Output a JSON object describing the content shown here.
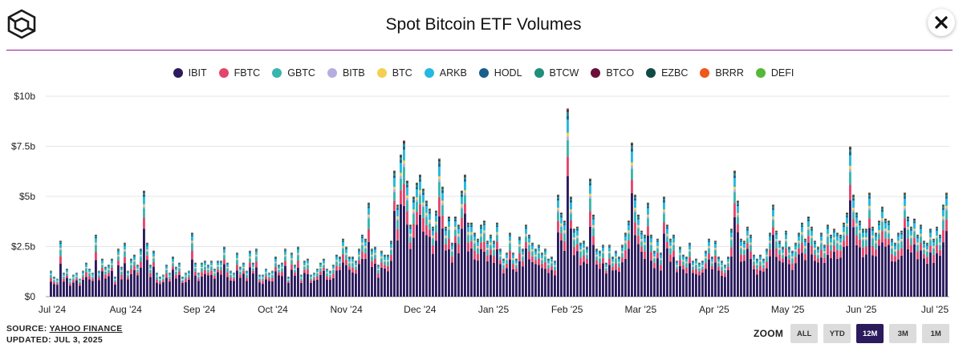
{
  "header": {
    "title": "Spot Bitcoin ETF Volumes"
  },
  "legend": [
    {
      "name": "IBIT",
      "color": "#2b1b5c"
    },
    {
      "name": "FBTC",
      "color": "#e2466d"
    },
    {
      "name": "GBTC",
      "color": "#3ab5ae"
    },
    {
      "name": "BITB",
      "color": "#b4aee0"
    },
    {
      "name": "BTC",
      "color": "#f4d052"
    },
    {
      "name": "ARKB",
      "color": "#25b8e0"
    },
    {
      "name": "HODL",
      "color": "#1a5f8c"
    },
    {
      "name": "BTCW",
      "color": "#1f8f7c"
    },
    {
      "name": "BTCO",
      "color": "#6b0f3a"
    },
    {
      "name": "EZBC",
      "color": "#0f4a44"
    },
    {
      "name": "BRRR",
      "color": "#ee5a1c"
    },
    {
      "name": "DEFI",
      "color": "#55b837"
    }
  ],
  "chart_data": {
    "type": "bar",
    "stacked": true,
    "title": "Spot Bitcoin ETF Volumes",
    "ylim": [
      0,
      10
    ],
    "y_ticks": [
      "$0",
      "$2.5b",
      "$5b",
      "$7.5b",
      "$10b"
    ],
    "x_tick_labels": [
      "Jul '24",
      "Aug '24",
      "Sep '24",
      "Oct '24",
      "Nov '24",
      "Dec '24",
      "Jan '25",
      "Feb '25",
      "Mar '25",
      "Apr '25",
      "May '25",
      "Jun '25",
      "Jul '25"
    ],
    "unit": "USD billions",
    "daily_totals": [
      1.3,
      1.0,
      0.9,
      2.8,
      1.2,
      1.4,
      0.9,
      1.1,
      1.2,
      0.9,
      1.3,
      1.7,
      1.4,
      1.2,
      3.1,
      1.3,
      1.9,
      1.5,
      1.6,
      1.9,
      1.0,
      2.4,
      1.5,
      2.7,
      1.3,
      1.9,
      2.1,
      1.6,
      2.4,
      5.3,
      2.7,
      1.6,
      2.3,
      1.2,
      1.0,
      1.1,
      1.6,
      1.2,
      2.0,
      1.5,
      1.7,
      1.0,
      1.2,
      1.3,
      3.2,
      1.7,
      1.2,
      1.7,
      1.8,
      1.6,
      1.8,
      1.4,
      1.8,
      1.8,
      2.5,
      1.7,
      1.3,
      1.2,
      2.2,
      1.5,
      1.7,
      1.3,
      2.3,
      1.7,
      2.4,
      1.1,
      1.1,
      1.4,
      1.2,
      1.3,
      2.0,
      1.6,
      1.7,
      2.4,
      1.0,
      2.2,
      1.6,
      2.5,
      1.1,
      1.8,
      1.9,
      1.1,
      1.2,
      1.4,
      1.7,
      1.9,
      1.4,
      1.3,
      1.6,
      2.1,
      2.0,
      2.9,
      2.5,
      2.0,
      2.0,
      1.8,
      2.4,
      3.1,
      2.9,
      4.7,
      2.4,
      2.5,
      1.6,
      2.3,
      2.1,
      2.1,
      2.8,
      6.3,
      4.6,
      7.1,
      7.8,
      5.8,
      3.6,
      5.0,
      5.7,
      6.1,
      5.4,
      4.8,
      4.4,
      3.5,
      4.3,
      6.9,
      5.5,
      3.5,
      4.0,
      2.7,
      4.0,
      3.6,
      5.3,
      6.1,
      3.7,
      3.7,
      3.2,
      2.9,
      3.6,
      3.8,
      2.8,
      3.1,
      2.8,
      3.7,
      2.4,
      1.9,
      2.2,
      3.2,
      2.2,
      1.9,
      3.0,
      2.4,
      3.6,
      3.1,
      2.7,
      2.4,
      2.6,
      2.2,
      2.4,
      1.9,
      2.0,
      1.8,
      5.1,
      4.2,
      3.8,
      9.4,
      5.0,
      3.4,
      3.5,
      2.7,
      2.8,
      2.5,
      5.9,
      4.1,
      2.4,
      2.3,
      2.6,
      1.7,
      2.6,
      2.0,
      2.3,
      2.0,
      2.6,
      3.2,
      3.8,
      7.7,
      5.1,
      4.1,
      3.3,
      3.1,
      4.7,
      3.1,
      2.3,
      2.9,
      2.2,
      5.0,
      3.6,
      2.9,
      3.1,
      1.8,
      2.5,
      2.1,
      2.0,
      2.7,
      1.8,
      1.9,
      1.7,
      1.8,
      2.3,
      2.9,
      2.0,
      2.8,
      2.0,
      1.8,
      1.6,
      2.0,
      3.4,
      6.3,
      4.8,
      2.9,
      2.8,
      3.5,
      3.1,
      2.1,
      1.9,
      2.1,
      1.9,
      2.4,
      3.2,
      4.6,
      3.3,
      2.8,
      2.5,
      3.3,
      2.5,
      2.3,
      2.7,
      3.2,
      3.7,
      2.9,
      4.0,
      3.5,
      2.8,
      2.5,
      3.2,
      2.6,
      3.6,
      3.1,
      3.4,
      3.2,
      3.1,
      3.7,
      4.2,
      7.5,
      5.1,
      4.2,
      3.8,
      3.4,
      3.4,
      5.2,
      3.5,
      3.2,
      3.8,
      4.5,
      3.9,
      3.8,
      2.9,
      2.7,
      3.2,
      3.3,
      5.2,
      4.0,
      3.5,
      3.9,
      3.1,
      3.6,
      2.8,
      2.7,
      3.4,
      2.9,
      3.5,
      3.1,
      4.6,
      5.2
    ],
    "composition": {
      "IBIT": 0.63,
      "FBTC": 0.11,
      "GBTC": 0.09,
      "BITB": 0.02,
      "BTC": 0.02,
      "ARKB": 0.07,
      "HODL": 0.02,
      "BTCW": 0.02,
      "BTCO": 0.01,
      "EZBC": 0.005,
      "BRRR": 0.003,
      "DEFI": 0.002
    }
  },
  "footer": {
    "source_prefix": "SOURCE: ",
    "source_link": "YAHOO FINANCE",
    "updated": "UPDATED: JUL 3, 2025"
  },
  "zoom": {
    "label": "ZOOM",
    "options": [
      "ALL",
      "YTD",
      "12M",
      "3M",
      "1M"
    ],
    "active": "12M"
  }
}
